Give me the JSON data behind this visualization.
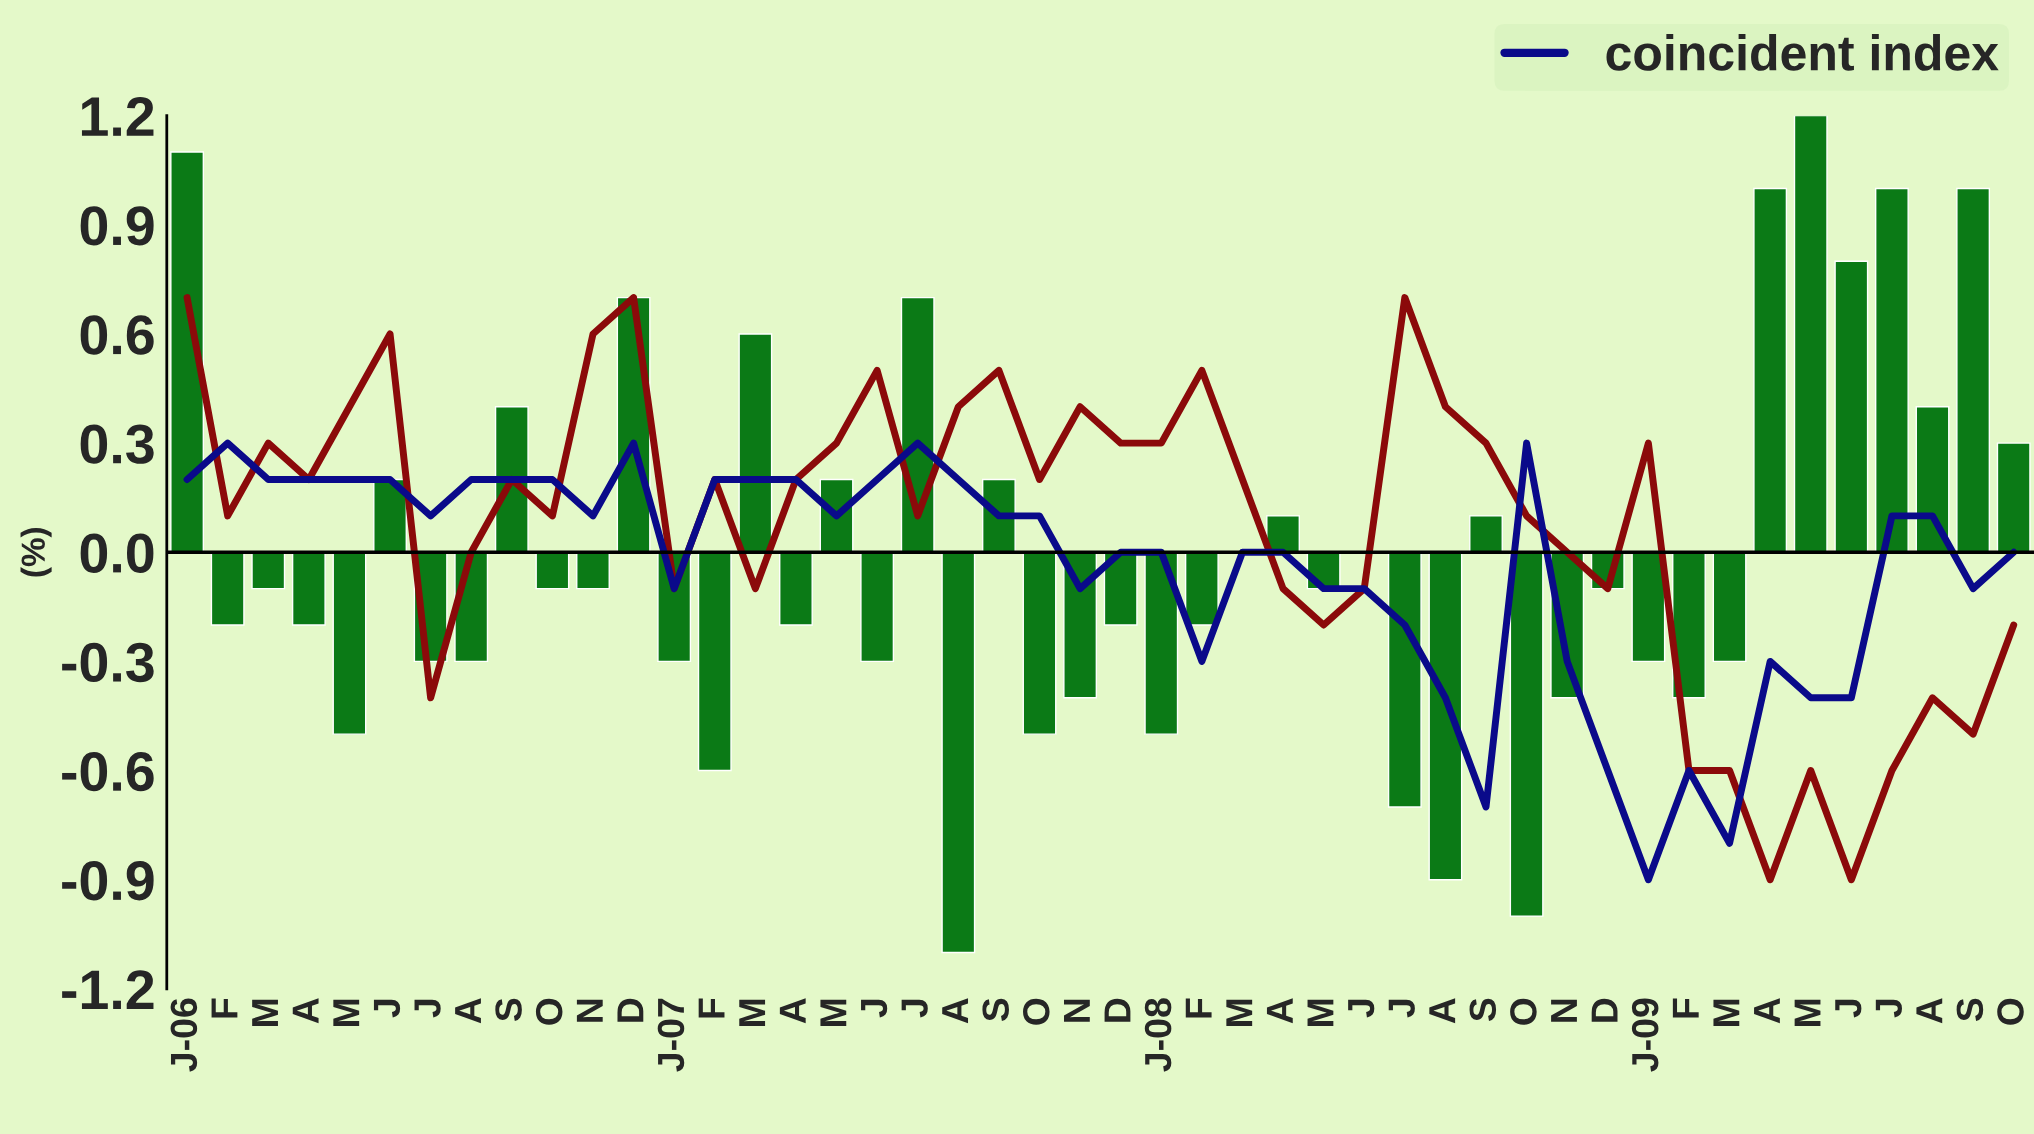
{
  "chart_data": {
    "type": "bar",
    "ylabel": "(%)",
    "categories": [
      "J-06",
      "F",
      "M",
      "A",
      "M",
      "J",
      "J",
      "A",
      "S",
      "O",
      "N",
      "D",
      "J-07",
      "F",
      "M",
      "A",
      "M",
      "J",
      "J",
      "A",
      "S",
      "O",
      "N",
      "D",
      "J-08",
      "F",
      "M",
      "A",
      "M",
      "J",
      "J",
      "A",
      "S",
      "O",
      "N",
      "D",
      "J-09",
      "F",
      "M",
      "A",
      "M",
      "J",
      "J",
      "A",
      "S",
      "O"
    ],
    "series": [
      {
        "color": "#0b7a16",
        "values": [
          1.1,
          -0.2,
          -0.1,
          -0.2,
          -0.5,
          0.2,
          -0.3,
          -0.3,
          0.4,
          -0.1,
          -0.1,
          0.7,
          -0.3,
          -0.6,
          0.6,
          -0.2,
          0.2,
          -0.3,
          0.7,
          -1.1,
          0.2,
          -0.5,
          -0.4,
          -0.2,
          -0.5,
          -0.2,
          null,
          0.1,
          -0.1,
          null,
          -0.7,
          -0.9,
          0.1,
          -1.0,
          -0.4,
          -0.1,
          -0.3,
          -0.4,
          -0.3,
          1.0,
          1.2,
          0.8,
          1.0,
          0.4,
          1.0,
          0.3
        ]
      },
      {
        "type": "line",
        "color": "#8b0a0a",
        "values": [
          0.7,
          0.1,
          0.3,
          0.2,
          0.4,
          0.6,
          -0.4,
          0.0,
          0.2,
          0.1,
          0.6,
          0.7,
          -0.1,
          0.2,
          -0.1,
          0.2,
          0.3,
          0.5,
          0.1,
          0.4,
          0.5,
          0.2,
          0.4,
          0.3,
          0.3,
          0.5,
          0.2,
          -0.1,
          -0.2,
          -0.1,
          0.7,
          0.4,
          0.3,
          0.1,
          0.0,
          -0.1,
          0.3,
          -0.6,
          -0.6,
          -0.9,
          -0.6,
          -0.9,
          -0.6,
          -0.4,
          -0.5,
          -0.2
        ]
      },
      {
        "type": "line",
        "name": "coincident index",
        "color": "#0a0a8a",
        "values": [
          0.2,
          0.3,
          0.2,
          0.2,
          0.2,
          0.2,
          0.1,
          0.2,
          0.2,
          0.2,
          0.1,
          0.3,
          -0.1,
          0.2,
          0.2,
          0.2,
          0.1,
          0.2,
          0.3,
          0.2,
          0.1,
          0.1,
          -0.1,
          0.0,
          0.0,
          -0.3,
          0.0,
          0.0,
          -0.1,
          -0.1,
          -0.2,
          -0.4,
          -0.7,
          0.3,
          -0.3,
          -0.6,
          -0.9,
          -0.6,
          -0.8,
          -0.3,
          -0.4,
          -0.4,
          0.1,
          0.1,
          -0.1,
          0.0
        ]
      }
    ],
    "ylim": [
      -1.2,
      1.2
    ],
    "yticks": [
      -1.2,
      -0.9,
      -0.6,
      -0.3,
      {
        "value": 0,
        "label": "0.0"
      },
      0.3,
      0.6,
      0.9,
      1.2
    ],
    "ref_lines": [
      {
        "axis": "y",
        "value": 0,
        "color": "#000000"
      }
    ],
    "legend": "top right",
    "grid": false,
    "line_style": "solid",
    "marker": "none"
  }
}
